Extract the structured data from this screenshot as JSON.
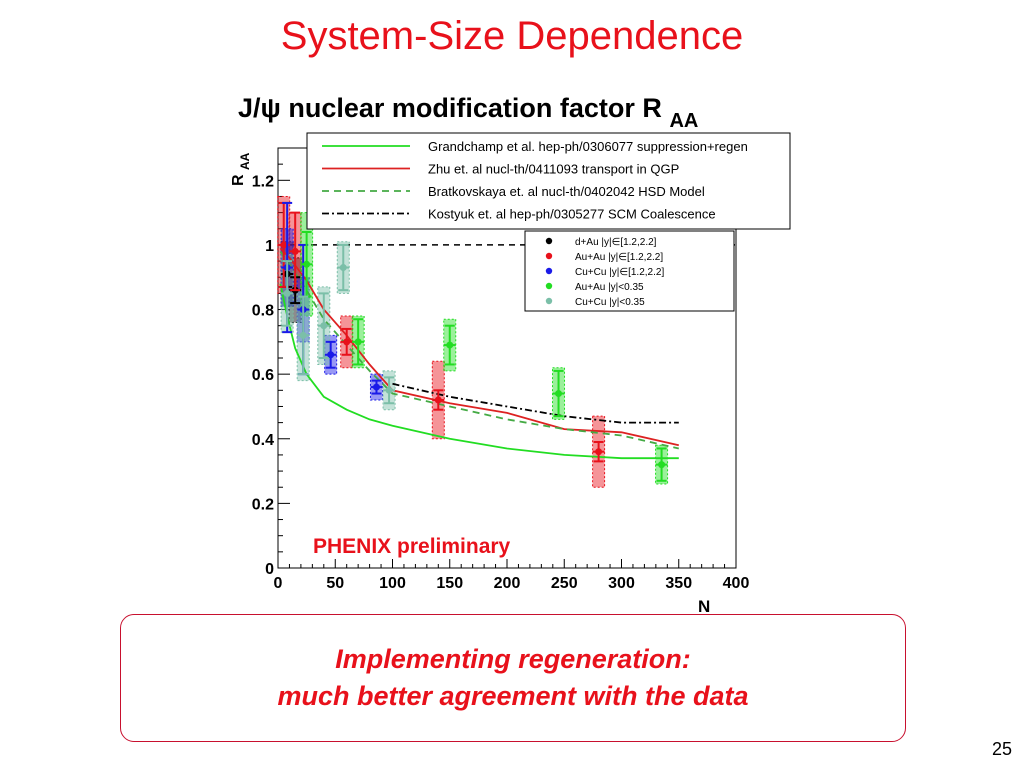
{
  "slide": {
    "title": "System-Size Dependence",
    "callout_line1": "Implementing regeneration:",
    "callout_line2": "much better agreement with the data",
    "page_number": "25"
  },
  "chart_data": {
    "type": "scatter",
    "title": "J/ψ nuclear modification factor R",
    "title_subscript": "AA",
    "ylabel": "R",
    "ylabel_subscript": "AA",
    "xlabel": "N",
    "xlim": [
      0,
      400
    ],
    "ylim": [
      0,
      1.3
    ],
    "xticks": [
      0,
      50,
      100,
      150,
      200,
      250,
      300,
      350,
      400
    ],
    "xtick_labels": [
      "0",
      "50",
      "100",
      "150",
      "200",
      "250",
      "300",
      "350",
      "400"
    ],
    "yticks": [
      0,
      0.2,
      0.4,
      0.6,
      0.8,
      1.0,
      1.2
    ],
    "ytick_labels": [
      "0",
      "0.2",
      "0.4",
      "0.6",
      "0.8",
      "1",
      "1.2"
    ],
    "reference_line_y": 1.0,
    "annotation": "PHENIX preliminary",
    "annotation_color": "#e8111b",
    "model_curves": [
      {
        "name": "Grandchamp et al. hep-ph/0306077 suppression+regen",
        "color": "#22dd22",
        "dash": "solid",
        "x": [
          2,
          8,
          15,
          25,
          40,
          60,
          80,
          100,
          150,
          200,
          250,
          300,
          350
        ],
        "y": [
          0.88,
          0.78,
          0.68,
          0.6,
          0.53,
          0.49,
          0.46,
          0.44,
          0.4,
          0.37,
          0.35,
          0.34,
          0.34
        ]
      },
      {
        "name": "Zhu et. al nucl-th/0411093 transport in QGP",
        "color": "#dd2222",
        "dash": "solid",
        "x": [
          2,
          10,
          25,
          40,
          60,
          80,
          100,
          150,
          200,
          250,
          300,
          350
        ],
        "y": [
          0.99,
          0.96,
          0.89,
          0.8,
          0.72,
          0.63,
          0.55,
          0.51,
          0.48,
          0.43,
          0.42,
          0.38
        ]
      },
      {
        "name": "Bratkovskaya et. al nucl-th/0402042 HSD Model",
        "color": "#44aa44",
        "dash": "dashed",
        "x": [
          2,
          10,
          25,
          40,
          60,
          80,
          100,
          150,
          200,
          250,
          300,
          350
        ],
        "y": [
          0.98,
          0.94,
          0.86,
          0.77,
          0.69,
          0.61,
          0.54,
          0.5,
          0.46,
          0.43,
          0.41,
          0.37
        ]
      },
      {
        "name": "Kostyuk et. al hep-ph/0305277 SCM Coalescence",
        "color": "#000000",
        "dash": "dashdot",
        "x": [
          100,
          150,
          200,
          250,
          300,
          350
        ],
        "y": [
          0.57,
          0.53,
          0.5,
          0.47,
          0.45,
          0.45
        ]
      }
    ],
    "series": [
      {
        "name": "d+Au |y|∈[1.2,2.2]",
        "color": "#000000",
        "points": [
          {
            "x": 8,
            "y": 0.91,
            "err": 0.04,
            "sys": 0.1
          },
          {
            "x": 15,
            "y": 0.86,
            "err": 0.04,
            "sys": 0.1
          }
        ]
      },
      {
        "name": "Au+Au |y|∈[1.2,2.2]",
        "color": "#e8111b",
        "points": [
          {
            "x": 5,
            "y": 1.0,
            "err": 0.13,
            "sys": 0.15
          },
          {
            "x": 15,
            "y": 0.98,
            "err": 0.12,
            "sys": 0.12
          },
          {
            "x": 60,
            "y": 0.7,
            "err": 0.04,
            "sys": 0.08
          },
          {
            "x": 140,
            "y": 0.52,
            "err": 0.03,
            "sys": 0.12
          },
          {
            "x": 280,
            "y": 0.36,
            "err": 0.03,
            "sys": 0.11
          }
        ]
      },
      {
        "name": "Cu+Cu |y|∈[1.2,2.2]",
        "color": "#1a1ae8",
        "points": [
          {
            "x": 8,
            "y": 0.93,
            "err": 0.2,
            "sys": 0.12
          },
          {
            "x": 22,
            "y": 0.8,
            "err": 0.2,
            "sys": 0.1
          },
          {
            "x": 46,
            "y": 0.66,
            "err": 0.04,
            "sys": 0.06
          },
          {
            "x": 86,
            "y": 0.56,
            "err": 0.02,
            "sys": 0.04
          }
        ]
      },
      {
        "name": "Au+Au |y|<0.35",
        "color": "#22dd22",
        "points": [
          {
            "x": 25,
            "y": 0.94,
            "err": 0.1,
            "sys": 0.16
          },
          {
            "x": 70,
            "y": 0.7,
            "err": 0.07,
            "sys": 0.08
          },
          {
            "x": 150,
            "y": 0.69,
            "err": 0.06,
            "sys": 0.08
          },
          {
            "x": 245,
            "y": 0.54,
            "err": 0.07,
            "sys": 0.08
          },
          {
            "x": 335,
            "y": 0.32,
            "err": 0.05,
            "sys": 0.06
          }
        ]
      },
      {
        "name": "Cu+Cu |y|<0.35",
        "color": "#7bbfa8",
        "points": [
          {
            "x": 8,
            "y": 0.85,
            "err": 0.1,
            "sys": 0.12
          },
          {
            "x": 22,
            "y": 0.72,
            "err": 0.12,
            "sys": 0.14
          },
          {
            "x": 40,
            "y": 0.75,
            "err": 0.1,
            "sys": 0.12
          },
          {
            "x": 57,
            "y": 0.93,
            "err": 0.07,
            "sys": 0.08
          },
          {
            "x": 97,
            "y": 0.55,
            "err": 0.04,
            "sys": 0.06
          }
        ]
      }
    ]
  }
}
